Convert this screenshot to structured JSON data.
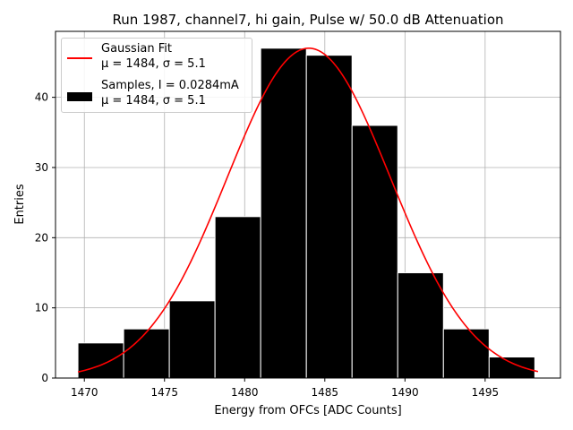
{
  "chart_data": {
    "type": "bar",
    "title": "Run 1987, channel7, hi gain, Pulse w/ 50.0 dB Attenuation",
    "xlabel": "Energy from OFCs [ADC Counts]",
    "ylabel": "Entries",
    "xlim": [
      1468.2,
      1499.7
    ],
    "ylim": [
      0,
      49.4
    ],
    "xticks": [
      1470,
      1475,
      1480,
      1485,
      1490,
      1495
    ],
    "yticks": [
      0,
      10,
      20,
      30,
      40
    ],
    "grid": true,
    "bin_edges": [
      1469.6,
      1472.45,
      1475.3,
      1478.15,
      1481.0,
      1483.85,
      1486.7,
      1489.55,
      1492.4,
      1495.25,
      1498.1
    ],
    "values": [
      5,
      7,
      11,
      23,
      47,
      46,
      36,
      15,
      7,
      3
    ],
    "fit": {
      "mu": 1484,
      "sigma": 5.1,
      "amplitude": 47,
      "x_range": [
        1469.6,
        1498.3
      ]
    },
    "series": [
      {
        "name": "Gaussian Fit",
        "stats": "μ = 1484, σ = 5.1",
        "color": "#ff0000",
        "kind": "line"
      },
      {
        "name": "Samples, I = 0.0284mA",
        "stats": "μ = 1484, σ = 5.1",
        "color": "#000000",
        "kind": "hist"
      }
    ],
    "legend_position": "upper-left"
  }
}
